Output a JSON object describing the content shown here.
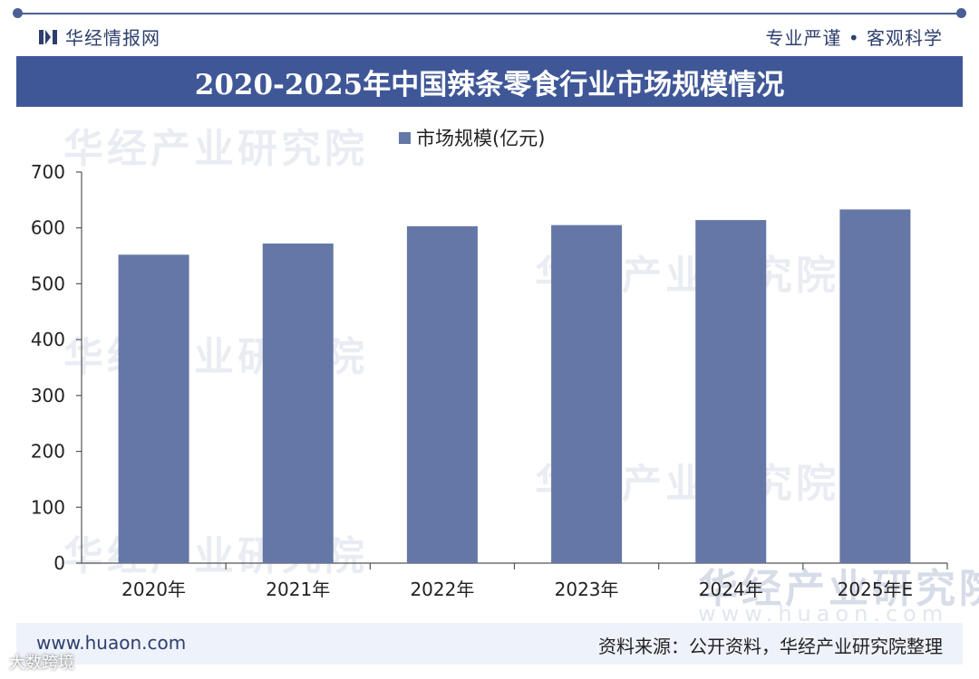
{
  "header": {
    "brand_name": "华经情报网",
    "slogan": "专业严谨 • 客观科学",
    "title": "2020-2025年中国辣条零食行业市场规模情况"
  },
  "chart_data": {
    "type": "bar",
    "title": "2020-2025年中国辣条零食行业市场规模情况",
    "categories": [
      "2020年",
      "2021年",
      "2022年",
      "2023年",
      "2024年",
      "2025年E"
    ],
    "series": [
      {
        "name": "市场规模(亿元)",
        "values": [
          552,
          572,
          603,
          605,
          614,
          633
        ]
      }
    ],
    "ylim": [
      0,
      700
    ],
    "yticks": [
      0,
      100,
      200,
      300,
      400,
      500,
      600,
      700
    ],
    "ytick_labels": [
      "0",
      "100",
      "200",
      "300",
      "400",
      "500",
      "600",
      "700"
    ],
    "bar_color": "#6477a6",
    "legend_position": "top-center",
    "grid": false
  },
  "watermark": {
    "text": "华经产业研究院",
    "en": "www.huaon.com"
  },
  "footer": {
    "website": "www.huaon.com",
    "source": "资料来源：公开资料，华经产业研究院整理",
    "platform": "大数跨境"
  },
  "colors": {
    "accent": "#3f5797",
    "bar": "#6477a6"
  }
}
